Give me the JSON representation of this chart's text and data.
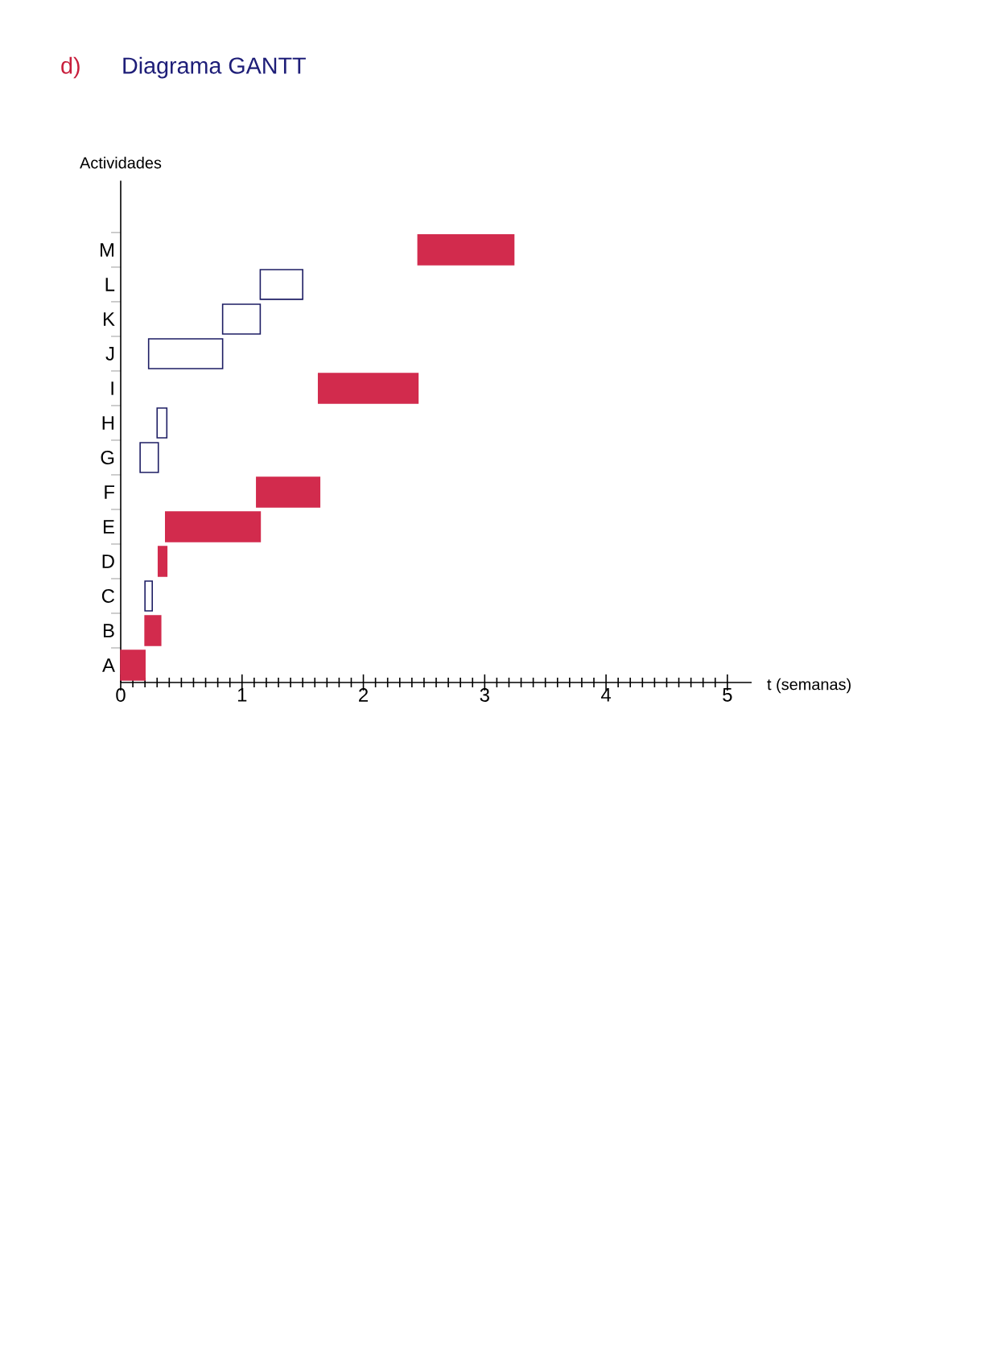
{
  "chart_data": {
    "type": "bar",
    "orientation": "horizontal",
    "title": "Diagrama GANTT",
    "annotations": [
      "d)"
    ],
    "xlabel": "t (semanas)",
    "ylabel": "Actividades",
    "categories": [
      "M",
      "L",
      "K",
      "J",
      "I",
      "H",
      "G",
      "F",
      "E",
      "D",
      "C",
      "B",
      "A"
    ],
    "base": [
      2.45,
      1.15,
      0.84,
      0.23,
      1.63,
      0.3,
      0.16,
      1.12,
      0.37,
      0.31,
      0.2,
      0.2,
      0
    ],
    "values": [
      0.79,
      0.35,
      0.31,
      0.61,
      0.82,
      0.08,
      0.15,
      0.52,
      0.78,
      0.07,
      0.06,
      0.13,
      0.2
    ],
    "colors": [
      "#d22b4d",
      "#1e1e64",
      "#1e1e64",
      "#1e1e64",
      "#d22b4d",
      "#1e1e64",
      "#1e1e64",
      "#d22b4d",
      "#d22b4d",
      "#d22b4d",
      "#1e1e64",
      "#d22b4d",
      "#d22b4d"
    ],
    "xlim": [
      0,
      5.2
    ],
    "xticks": [
      0,
      1,
      2,
      3,
      4,
      5
    ]
  }
}
